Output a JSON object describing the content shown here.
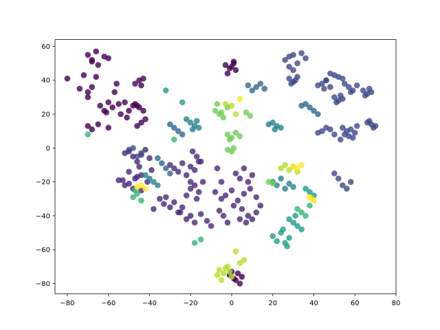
{
  "chart_data": {
    "type": "scatter",
    "title": "",
    "xlabel": "",
    "ylabel": "",
    "xlim": [
      -86,
      80
    ],
    "ylim": [
      -86,
      64
    ],
    "xticks": [
      -80,
      -60,
      -40,
      -20,
      0,
      20,
      40,
      60,
      80
    ],
    "yticks": [
      -80,
      -60,
      -40,
      -20,
      0,
      20,
      40,
      60
    ],
    "grid": false,
    "legend": "none",
    "colormap": "viridis",
    "alpha": 0.8,
    "colors": {
      "c0": "#440154",
      "c1": "#482878",
      "c2": "#3e4989",
      "c3": "#31688e",
      "c4": "#26828e",
      "c5": "#1f9e89",
      "c6": "#35b779",
      "c7": "#6ece58",
      "c8": "#b5de2b",
      "c9": "#fde725"
    },
    "clusters": [
      {
        "label": 0,
        "x": [
          -70,
          -68,
          -66,
          -62,
          -60,
          -65,
          -68
        ],
        "y": [
          55,
          51,
          57,
          54,
          53,
          49,
          52
        ]
      },
      {
        "label": 0,
        "x": [
          -80,
          -72,
          -70,
          -68,
          -66,
          -70,
          -74
        ],
        "y": [
          41,
          43,
          33,
          36,
          42,
          30,
          35
        ]
      },
      {
        "label": 0,
        "x": [
          -64,
          -62,
          -58,
          -60,
          -56,
          -61
        ],
        "y": [
          25,
          22,
          24,
          27,
          38,
          21
        ]
      },
      {
        "label": 0,
        "x": [
          -55,
          -52,
          -50,
          -48,
          -54,
          -51
        ],
        "y": [
          26,
          27,
          22,
          25,
          20,
          18
        ]
      },
      {
        "label": 0,
        "x": [
          -45,
          -47,
          -43,
          -44,
          -46
        ],
        "y": [
          40,
          38,
          41,
          37,
          25
        ]
      },
      {
        "label": 0,
        "x": [
          -45,
          -43,
          -47,
          -44,
          -46,
          -42
        ],
        "y": [
          24,
          22,
          26,
          15,
          13,
          17
        ]
      },
      {
        "label": 0,
        "x": [
          -70,
          -68,
          -65,
          -60,
          -57
        ],
        "y": [
          13,
          11,
          14,
          12,
          33
        ]
      },
      {
        "label": 0,
        "x": [
          -3,
          -1,
          1,
          2,
          0,
          -2,
          1
        ],
        "y": [
          49,
          47,
          50,
          46,
          48,
          44,
          51
        ]
      },
      {
        "label": 0,
        "x": [
          -1,
          1,
          3,
          4,
          2,
          0,
          5
        ],
        "y": [
          -75,
          -77,
          -74,
          -80,
          -78,
          -73,
          -76
        ]
      },
      {
        "label": 1,
        "x": [
          -50,
          -48,
          -46,
          -44,
          -42,
          -40,
          -52
        ],
        "y": [
          -2,
          -5,
          -8,
          -4,
          -1,
          -6,
          -3
        ]
      },
      {
        "label": 1,
        "x": [
          -50,
          -47,
          -44,
          -41,
          -39,
          -53,
          -45
        ],
        "y": [
          -14,
          -18,
          -16,
          -20,
          -13,
          -19,
          -11
        ]
      },
      {
        "label": 1,
        "x": [
          -55,
          -52,
          -48,
          -46,
          -50,
          -44
        ],
        "y": [
          -19,
          -22,
          -24,
          -17,
          -21,
          -25
        ]
      },
      {
        "label": 1,
        "x": [
          -30,
          -28,
          -26,
          -24,
          -22,
          -20,
          -18,
          -16
        ],
        "y": [
          -10,
          -12,
          -14,
          -9,
          -16,
          -11,
          -13,
          -8
        ]
      },
      {
        "label": 1,
        "x": [
          -18,
          -16,
          -20,
          -22,
          -14
        ],
        "y": [
          -22,
          -26,
          -24,
          -28,
          -20
        ]
      },
      {
        "label": 1,
        "x": [
          -35,
          -33,
          -30,
          -28,
          -26,
          -38,
          -32
        ],
        "y": [
          -30,
          -33,
          -35,
          -32,
          -38,
          -36,
          -29
        ]
      },
      {
        "label": 1,
        "x": [
          -25,
          -22,
          -20,
          -18,
          -15,
          -12,
          -10,
          -24,
          -17
        ],
        "y": [
          -38,
          -42,
          -40,
          -44,
          -39,
          -43,
          -46,
          -35,
          -30
        ]
      },
      {
        "label": 1,
        "x": [
          -8,
          -5,
          -3,
          0,
          3,
          6,
          9,
          12
        ],
        "y": [
          -26,
          -30,
          -28,
          -25,
          -31,
          -27,
          -24,
          -29
        ]
      },
      {
        "label": 1,
        "x": [
          -6,
          -4,
          -2,
          1,
          4
        ],
        "y": [
          -37,
          -40,
          -44,
          -34,
          -42
        ]
      },
      {
        "label": 1,
        "x": [
          5,
          8,
          10,
          12,
          14,
          7
        ],
        "y": [
          -36,
          -40,
          -42,
          -38,
          -34,
          -44
        ]
      },
      {
        "label": 1,
        "x": [
          2,
          4,
          6,
          8,
          10,
          -7,
          -5
        ],
        "y": [
          -15,
          -18,
          -12,
          -20,
          -16,
          -12,
          -20
        ]
      },
      {
        "label": 1,
        "x": [
          -19,
          -17,
          -15,
          -20
        ],
        "y": [
          -2,
          -5,
          -8,
          -20
        ]
      },
      {
        "label": 2,
        "x": [
          26,
          28,
          30,
          32,
          34,
          36,
          28,
          30
        ],
        "y": [
          52,
          54,
          55,
          50,
          56,
          53,
          48,
          46
        ]
      },
      {
        "label": 2,
        "x": [
          28,
          30,
          32,
          29,
          31
        ],
        "y": [
          41,
          39,
          42,
          38,
          40
        ]
      },
      {
        "label": 2,
        "x": [
          44,
          46,
          48,
          42,
          45
        ],
        "y": [
          38,
          40,
          36,
          37,
          35
        ]
      },
      {
        "label": 2,
        "x": [
          48,
          50,
          52,
          54,
          46
        ],
        "y": [
          44,
          43,
          42,
          41,
          40
        ]
      },
      {
        "label": 2,
        "x": [
          55,
          57,
          59,
          61,
          58
        ],
        "y": [
          38,
          36,
          34,
          37,
          33
        ]
      },
      {
        "label": 2,
        "x": [
          50,
          52,
          54,
          51,
          53
        ],
        "y": [
          30,
          28,
          29,
          27,
          31
        ]
      },
      {
        "label": 2,
        "x": [
          64,
          66,
          68,
          65,
          67
        ],
        "y": [
          34,
          32,
          33,
          31,
          35
        ]
      },
      {
        "label": 2,
        "x": [
          54,
          56,
          58,
          60,
          57,
          59,
          55,
          61,
          53
        ],
        "y": [
          12,
          10,
          11,
          9,
          7,
          6,
          8,
          13,
          5
        ]
      },
      {
        "label": 2,
        "x": [
          66,
          68,
          70,
          67,
          69
        ],
        "y": [
          15,
          14,
          13,
          16,
          12
        ]
      },
      {
        "label": 2,
        "x": [
          44,
          46,
          48,
          42,
          50
        ],
        "y": [
          10,
          12,
          11,
          9,
          8
        ]
      },
      {
        "label": 2,
        "x": [
          50,
          52,
          54,
          56,
          58
        ],
        "y": [
          -15,
          -18,
          -22,
          -24,
          -20
        ]
      },
      {
        "label": 2,
        "x": [
          -50,
          -48,
          -46,
          -44
        ],
        "y": [
          -1,
          0,
          -5,
          -3
        ]
      },
      {
        "label": 3,
        "x": [
          12,
          14,
          16,
          10,
          8
        ],
        "y": [
          36,
          38,
          35,
          34,
          37
        ]
      },
      {
        "label": 3,
        "x": [
          36,
          38,
          40,
          42,
          34
        ],
        "y": [
          26,
          24,
          22,
          20,
          25
        ]
      },
      {
        "label": 3,
        "x": [
          -30,
          -28,
          -26,
          -24
        ],
        "y": [
          14,
          12,
          10,
          8
        ]
      },
      {
        "label": 3,
        "x": [
          -36,
          -34,
          -32,
          -30
        ],
        "y": [
          -6,
          -9,
          -12,
          -15
        ]
      },
      {
        "label": 4,
        "x": [
          -20,
          -18,
          -16,
          -22,
          -19,
          -17
        ],
        "y": [
          15,
          13,
          12,
          17,
          11,
          16
        ]
      },
      {
        "label": 4,
        "x": [
          20,
          22,
          24,
          18,
          21
        ],
        "y": [
          15,
          13,
          12,
          14,
          11
        ]
      },
      {
        "label": 4,
        "x": [
          20,
          22,
          24,
          26,
          28,
          30
        ],
        "y": [
          -20,
          -22,
          -18,
          -24,
          -21,
          -23
        ]
      },
      {
        "label": 4,
        "x": [
          -42,
          -40,
          -38,
          -36
        ],
        "y": [
          -16,
          -18,
          -20,
          -22
        ]
      },
      {
        "label": 5,
        "x": [
          20,
          22,
          24,
          26,
          28,
          25,
          27
        ],
        "y": [
          -52,
          -55,
          -50,
          -56,
          -53,
          -48,
          -58
        ]
      },
      {
        "label": 5,
        "x": [
          30,
          32,
          34,
          28,
          31
        ],
        "y": [
          -44,
          -46,
          -48,
          -42,
          -40
        ]
      },
      {
        "label": 5,
        "x": [
          -32,
          -24
        ],
        "y": [
          34,
          27
        ]
      },
      {
        "label": 5,
        "x": [
          36,
          38,
          40
        ],
        "y": [
          -24,
          -26,
          -28
        ]
      },
      {
        "label": 6,
        "x": [
          -46,
          -48,
          -44,
          -47
        ],
        "y": [
          -27,
          -29,
          -31,
          -25
        ]
      },
      {
        "label": 6,
        "x": [
          -70,
          -28
        ],
        "y": [
          8,
          5
        ]
      },
      {
        "label": 6,
        "x": [
          -18,
          -15
        ],
        "y": [
          -56,
          -54
        ]
      },
      {
        "label": 6,
        "x": [
          32,
          34,
          36,
          38
        ],
        "y": [
          -36,
          -38,
          -40,
          -34
        ]
      },
      {
        "label": 7,
        "x": [
          -8,
          -6,
          -4,
          -2,
          -7,
          -5
        ],
        "y": [
          22,
          20,
          18,
          24,
          26,
          21
        ]
      },
      {
        "label": 7,
        "x": [
          -2,
          0,
          2,
          4,
          -1
        ],
        "y": [
          8,
          6,
          9,
          7,
          5
        ]
      },
      {
        "label": 7,
        "x": [
          -2,
          0,
          1
        ],
        "y": [
          -1,
          -2,
          0
        ]
      },
      {
        "label": 7,
        "x": [
          7,
          9
        ],
        "y": [
          21,
          19
        ]
      },
      {
        "label": 7,
        "x": [
          18,
          20
        ],
        "y": [
          -20,
          -21
        ]
      },
      {
        "label": 8,
        "x": [
          -6,
          -4,
          -2,
          0,
          -5,
          -3,
          -1,
          -7
        ],
        "y": [
          -72,
          -74,
          -70,
          -76,
          -78,
          -71,
          -73,
          -75
        ]
      },
      {
        "label": 8,
        "x": [
          4,
          6,
          2
        ],
        "y": [
          -68,
          -66,
          -61
        ]
      },
      {
        "label": 8,
        "x": [
          24,
          26,
          28,
          30,
          32
        ],
        "y": [
          -12,
          -10,
          -13,
          -11,
          -14
        ]
      },
      {
        "label": 8,
        "x": [
          -3,
          0,
          2
        ],
        "y": [
          26,
          25,
          20
        ]
      },
      {
        "label": 9,
        "x": [
          -44,
          -42,
          -46
        ],
        "y": [
          -22,
          -24,
          -23
        ]
      },
      {
        "label": 9,
        "x": [
          38,
          40,
          39
        ],
        "y": [
          -29,
          -31,
          -30
        ]
      },
      {
        "label": 9,
        "x": [
          32,
          34,
          30
        ],
        "y": [
          -12,
          -10,
          -11
        ]
      },
      {
        "label": 9,
        "x": [
          4
        ],
        "y": [
          29
        ]
      }
    ]
  }
}
